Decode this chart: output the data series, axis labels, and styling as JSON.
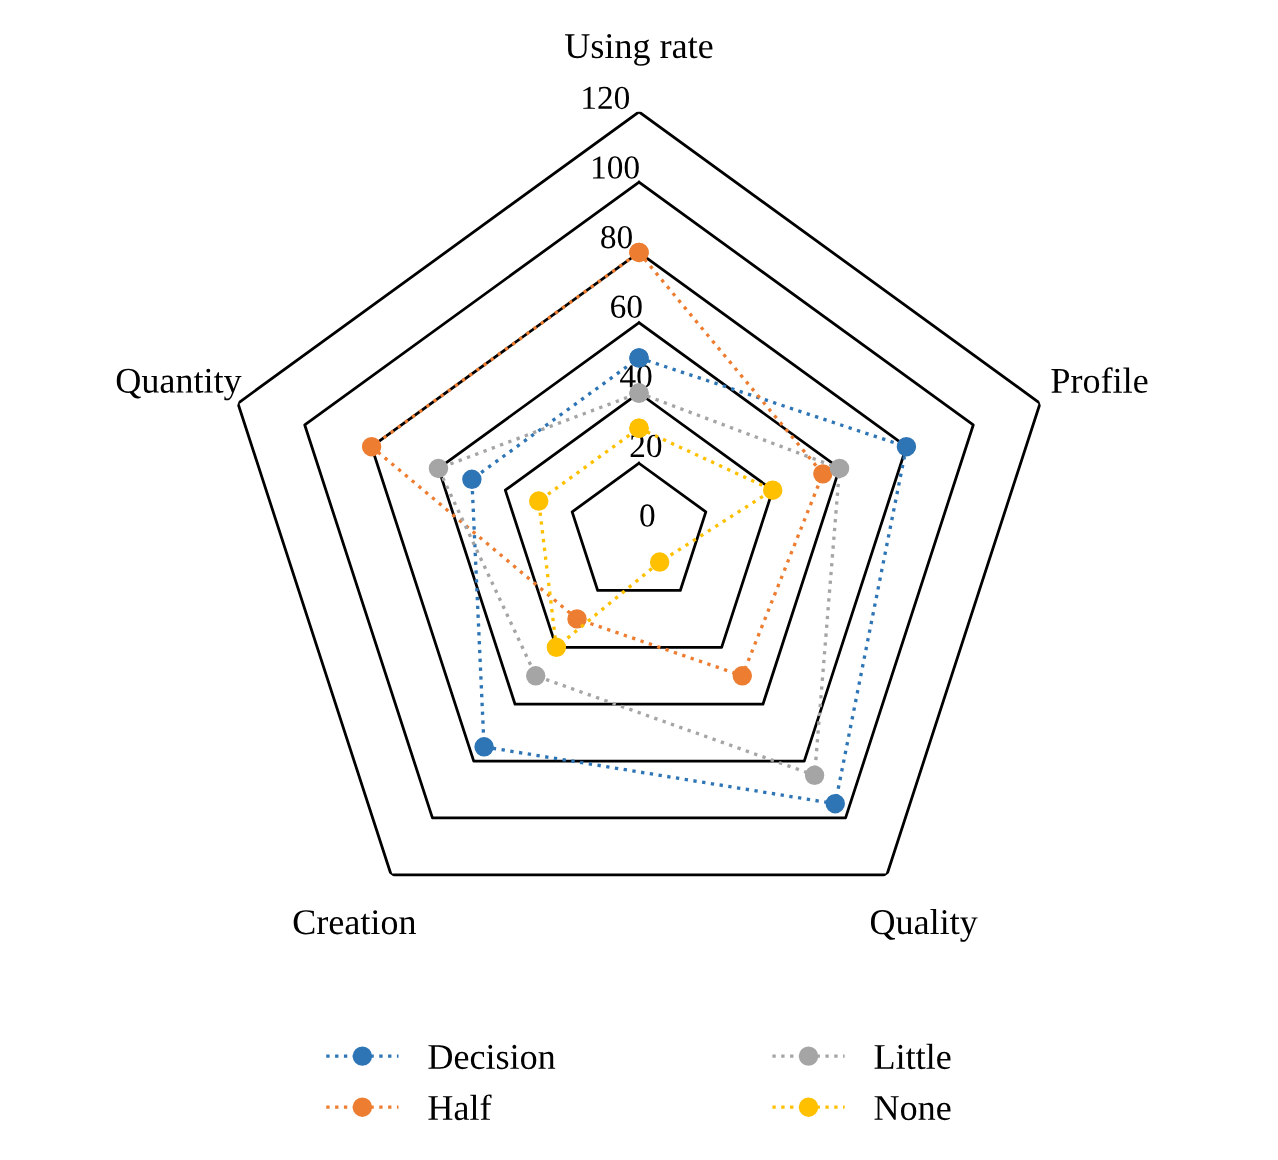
{
  "chart_data": {
    "type": "radar",
    "categories": [
      "Using rate",
      "Profile",
      "Quality",
      "Creation",
      "Quantity"
    ],
    "series": [
      {
        "name": "Decision",
        "color": "#2e75b6",
        "values": [
          50,
          80,
          95,
          75,
          50
        ]
      },
      {
        "name": "Half",
        "color": "#ed7d31",
        "values": [
          80,
          55,
          50,
          30,
          80
        ]
      },
      {
        "name": "Little",
        "color": "#a5a5a5",
        "values": [
          40,
          60,
          85,
          50,
          60
        ]
      },
      {
        "name": "None",
        "color": "#ffc000",
        "values": [
          30,
          40,
          10,
          40,
          30
        ]
      }
    ],
    "ylim": [
      0,
      120
    ],
    "yticks": [
      0,
      20,
      40,
      60,
      80,
      100,
      120
    ],
    "grid": true,
    "legend": "bottom",
    "marker": "circle",
    "line_style": "dotted"
  }
}
